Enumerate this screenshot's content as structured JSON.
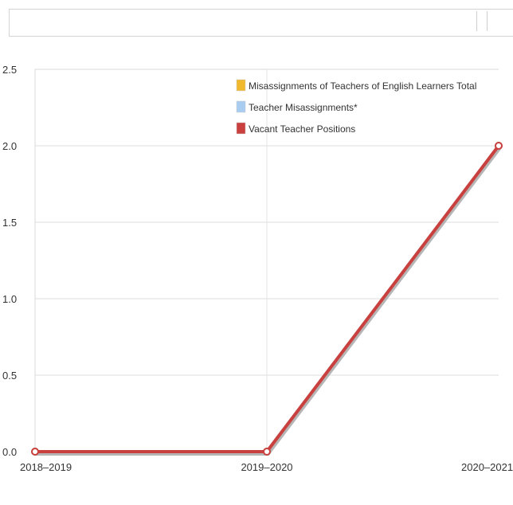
{
  "chart_data": {
    "type": "line",
    "title": "",
    "xlabel": "",
    "ylabel": "",
    "categories": [
      "2018–2019",
      "2019–2020",
      "2020–2021"
    ],
    "ylim": [
      0,
      2.5
    ],
    "yticks": [
      "0.0",
      "0.5",
      "1.0",
      "1.5",
      "2.0",
      "2.5"
    ],
    "grid": true,
    "legend_position": "top-right",
    "series": [
      {
        "name": "Misassignments of Teachers of English Learners Total",
        "color": "#f0b92e",
        "values": [
          0,
          0,
          2
        ]
      },
      {
        "name": "Teacher Misassignments*",
        "color": "#a9cdf0",
        "values": [
          0,
          0,
          2
        ]
      },
      {
        "name": "Vacant Teacher Positions",
        "color": "#c9403f",
        "values": [
          0,
          0,
          2
        ]
      }
    ]
  }
}
